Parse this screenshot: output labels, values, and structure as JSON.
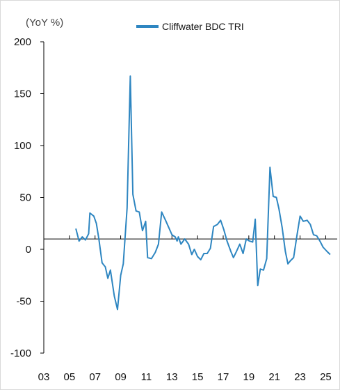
{
  "chart_data": {
    "type": "line",
    "title": "",
    "unit_label": "(YoY %)",
    "xlabel": "",
    "ylabel": "",
    "ylim": [
      -100,
      200
    ],
    "yticks": [
      200,
      150,
      100,
      50,
      0,
      -50,
      -100
    ],
    "xlim": [
      2003,
      2025.9
    ],
    "xticks": [
      {
        "x": 2003,
        "label": "03"
      },
      {
        "x": 2005,
        "label": "05"
      },
      {
        "x": 2007,
        "label": "07"
      },
      {
        "x": 2009,
        "label": "09"
      },
      {
        "x": 2011,
        "label": "11"
      },
      {
        "x": 2013,
        "label": "13"
      },
      {
        "x": 2015,
        "label": "15"
      },
      {
        "x": 2017,
        "label": "17"
      },
      {
        "x": 2019,
        "label": "19"
      },
      {
        "x": 2021,
        "label": "21"
      },
      {
        "x": 2023,
        "label": "23"
      },
      {
        "x": 2025,
        "label": "25"
      }
    ],
    "reference_line": 10,
    "legend_position": "top-center",
    "grid": false,
    "series": [
      {
        "name": "Cliffwater BDC TRI",
        "color": "#2e86c1",
        "points": [
          [
            2005.5,
            20
          ],
          [
            2005.75,
            8
          ],
          [
            2006.0,
            12
          ],
          [
            2006.25,
            9
          ],
          [
            2006.5,
            15
          ],
          [
            2006.6,
            35
          ],
          [
            2006.9,
            32
          ],
          [
            2007.1,
            25
          ],
          [
            2007.3,
            10
          ],
          [
            2007.55,
            -13
          ],
          [
            2007.8,
            -17
          ],
          [
            2008.0,
            -28
          ],
          [
            2008.2,
            -20
          ],
          [
            2008.5,
            -45
          ],
          [
            2008.75,
            -58
          ],
          [
            2009.0,
            -25
          ],
          [
            2009.2,
            -14
          ],
          [
            2009.5,
            40
          ],
          [
            2009.75,
            167
          ],
          [
            2009.95,
            53
          ],
          [
            2010.2,
            37
          ],
          [
            2010.45,
            36
          ],
          [
            2010.7,
            18
          ],
          [
            2010.95,
            27
          ],
          [
            2011.1,
            -8
          ],
          [
            2011.4,
            -9
          ],
          [
            2011.7,
            -3
          ],
          [
            2011.95,
            5
          ],
          [
            2012.2,
            36
          ],
          [
            2012.5,
            28
          ],
          [
            2012.75,
            21
          ],
          [
            2013.0,
            14
          ],
          [
            2013.25,
            12
          ],
          [
            2013.4,
            8
          ],
          [
            2013.5,
            12
          ],
          [
            2013.7,
            5
          ],
          [
            2014.0,
            10
          ],
          [
            2014.3,
            5
          ],
          [
            2014.55,
            -5
          ],
          [
            2014.75,
            0
          ],
          [
            2015.0,
            -7
          ],
          [
            2015.25,
            -10
          ],
          [
            2015.5,
            -4
          ],
          [
            2015.75,
            -4
          ],
          [
            2016.0,
            1
          ],
          [
            2016.25,
            22
          ],
          [
            2016.55,
            24
          ],
          [
            2016.8,
            28
          ],
          [
            2017.05,
            19
          ],
          [
            2017.3,
            8
          ],
          [
            2017.6,
            -2
          ],
          [
            2017.8,
            -8
          ],
          [
            2018.0,
            -3
          ],
          [
            2018.3,
            5
          ],
          [
            2018.55,
            -4
          ],
          [
            2018.8,
            10
          ],
          [
            2019.05,
            8
          ],
          [
            2019.3,
            7
          ],
          [
            2019.5,
            29
          ],
          [
            2019.7,
            -35
          ],
          [
            2019.9,
            -19
          ],
          [
            2020.15,
            -20
          ],
          [
            2020.4,
            -9
          ],
          [
            2020.65,
            79
          ],
          [
            2020.9,
            51
          ],
          [
            2021.15,
            50
          ],
          [
            2021.35,
            39
          ],
          [
            2021.6,
            21
          ],
          [
            2021.85,
            -2
          ],
          [
            2022.05,
            -14
          ],
          [
            2022.25,
            -11
          ],
          [
            2022.5,
            -8
          ],
          [
            2022.75,
            13
          ],
          [
            2023.0,
            32
          ],
          [
            2023.25,
            27
          ],
          [
            2023.55,
            28
          ],
          [
            2023.8,
            24
          ],
          [
            2024.05,
            14
          ],
          [
            2024.3,
            13
          ],
          [
            2024.55,
            8
          ],
          [
            2024.8,
            2
          ],
          [
            2025.1,
            -2
          ],
          [
            2025.35,
            -5
          ]
        ]
      }
    ]
  }
}
